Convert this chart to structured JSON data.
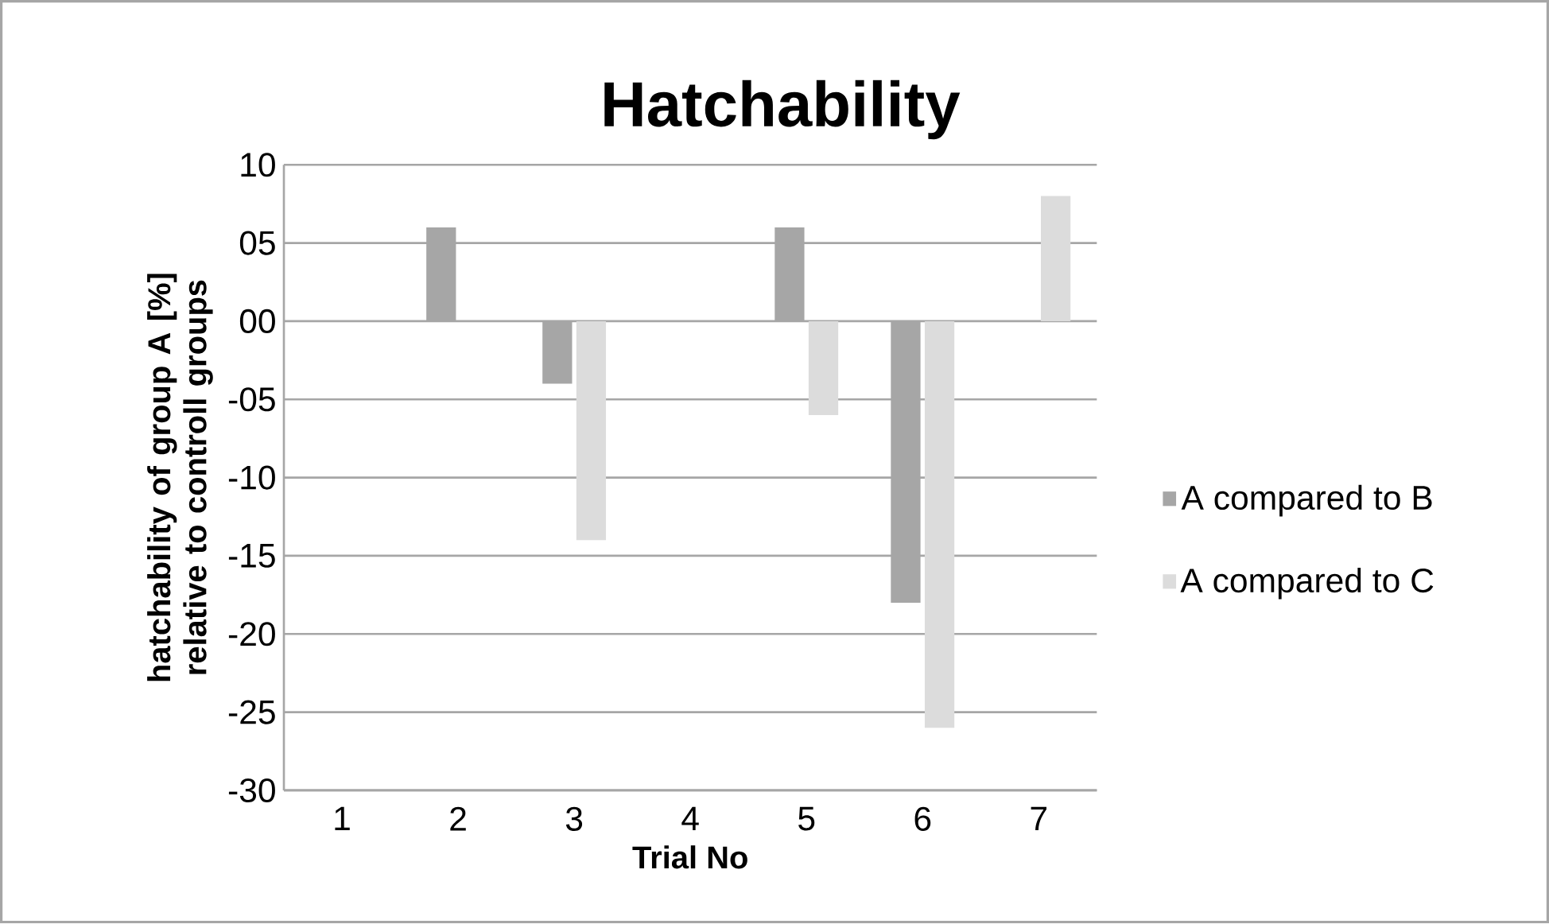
{
  "chart_data": {
    "type": "bar",
    "title": "Hatchability",
    "xlabel": "Trial No",
    "ylabel": "hatchability of group A [%] relative to controll groups",
    "categories": [
      "1",
      "2",
      "3",
      "4",
      "5",
      "6",
      "7"
    ],
    "series": [
      {
        "name": "A compared to B",
        "color": "#a6a6a6",
        "values": [
          0,
          6,
          -4,
          0,
          6,
          -18,
          0
        ]
      },
      {
        "name": "A compared to C",
        "color": "#dcdcdc",
        "values": [
          0,
          0,
          -14,
          0,
          -6,
          -26,
          8
        ]
      }
    ],
    "ylim": [
      -30,
      10
    ],
    "yticks": [
      10,
      {
        "value": 5,
        "label": "05"
      },
      {
        "value": 0,
        "label": "00"
      },
      {
        "value": -5,
        "label": "-05"
      },
      -10,
      -15,
      -20,
      -25,
      -30
    ],
    "grid": "y",
    "legend": "right"
  }
}
